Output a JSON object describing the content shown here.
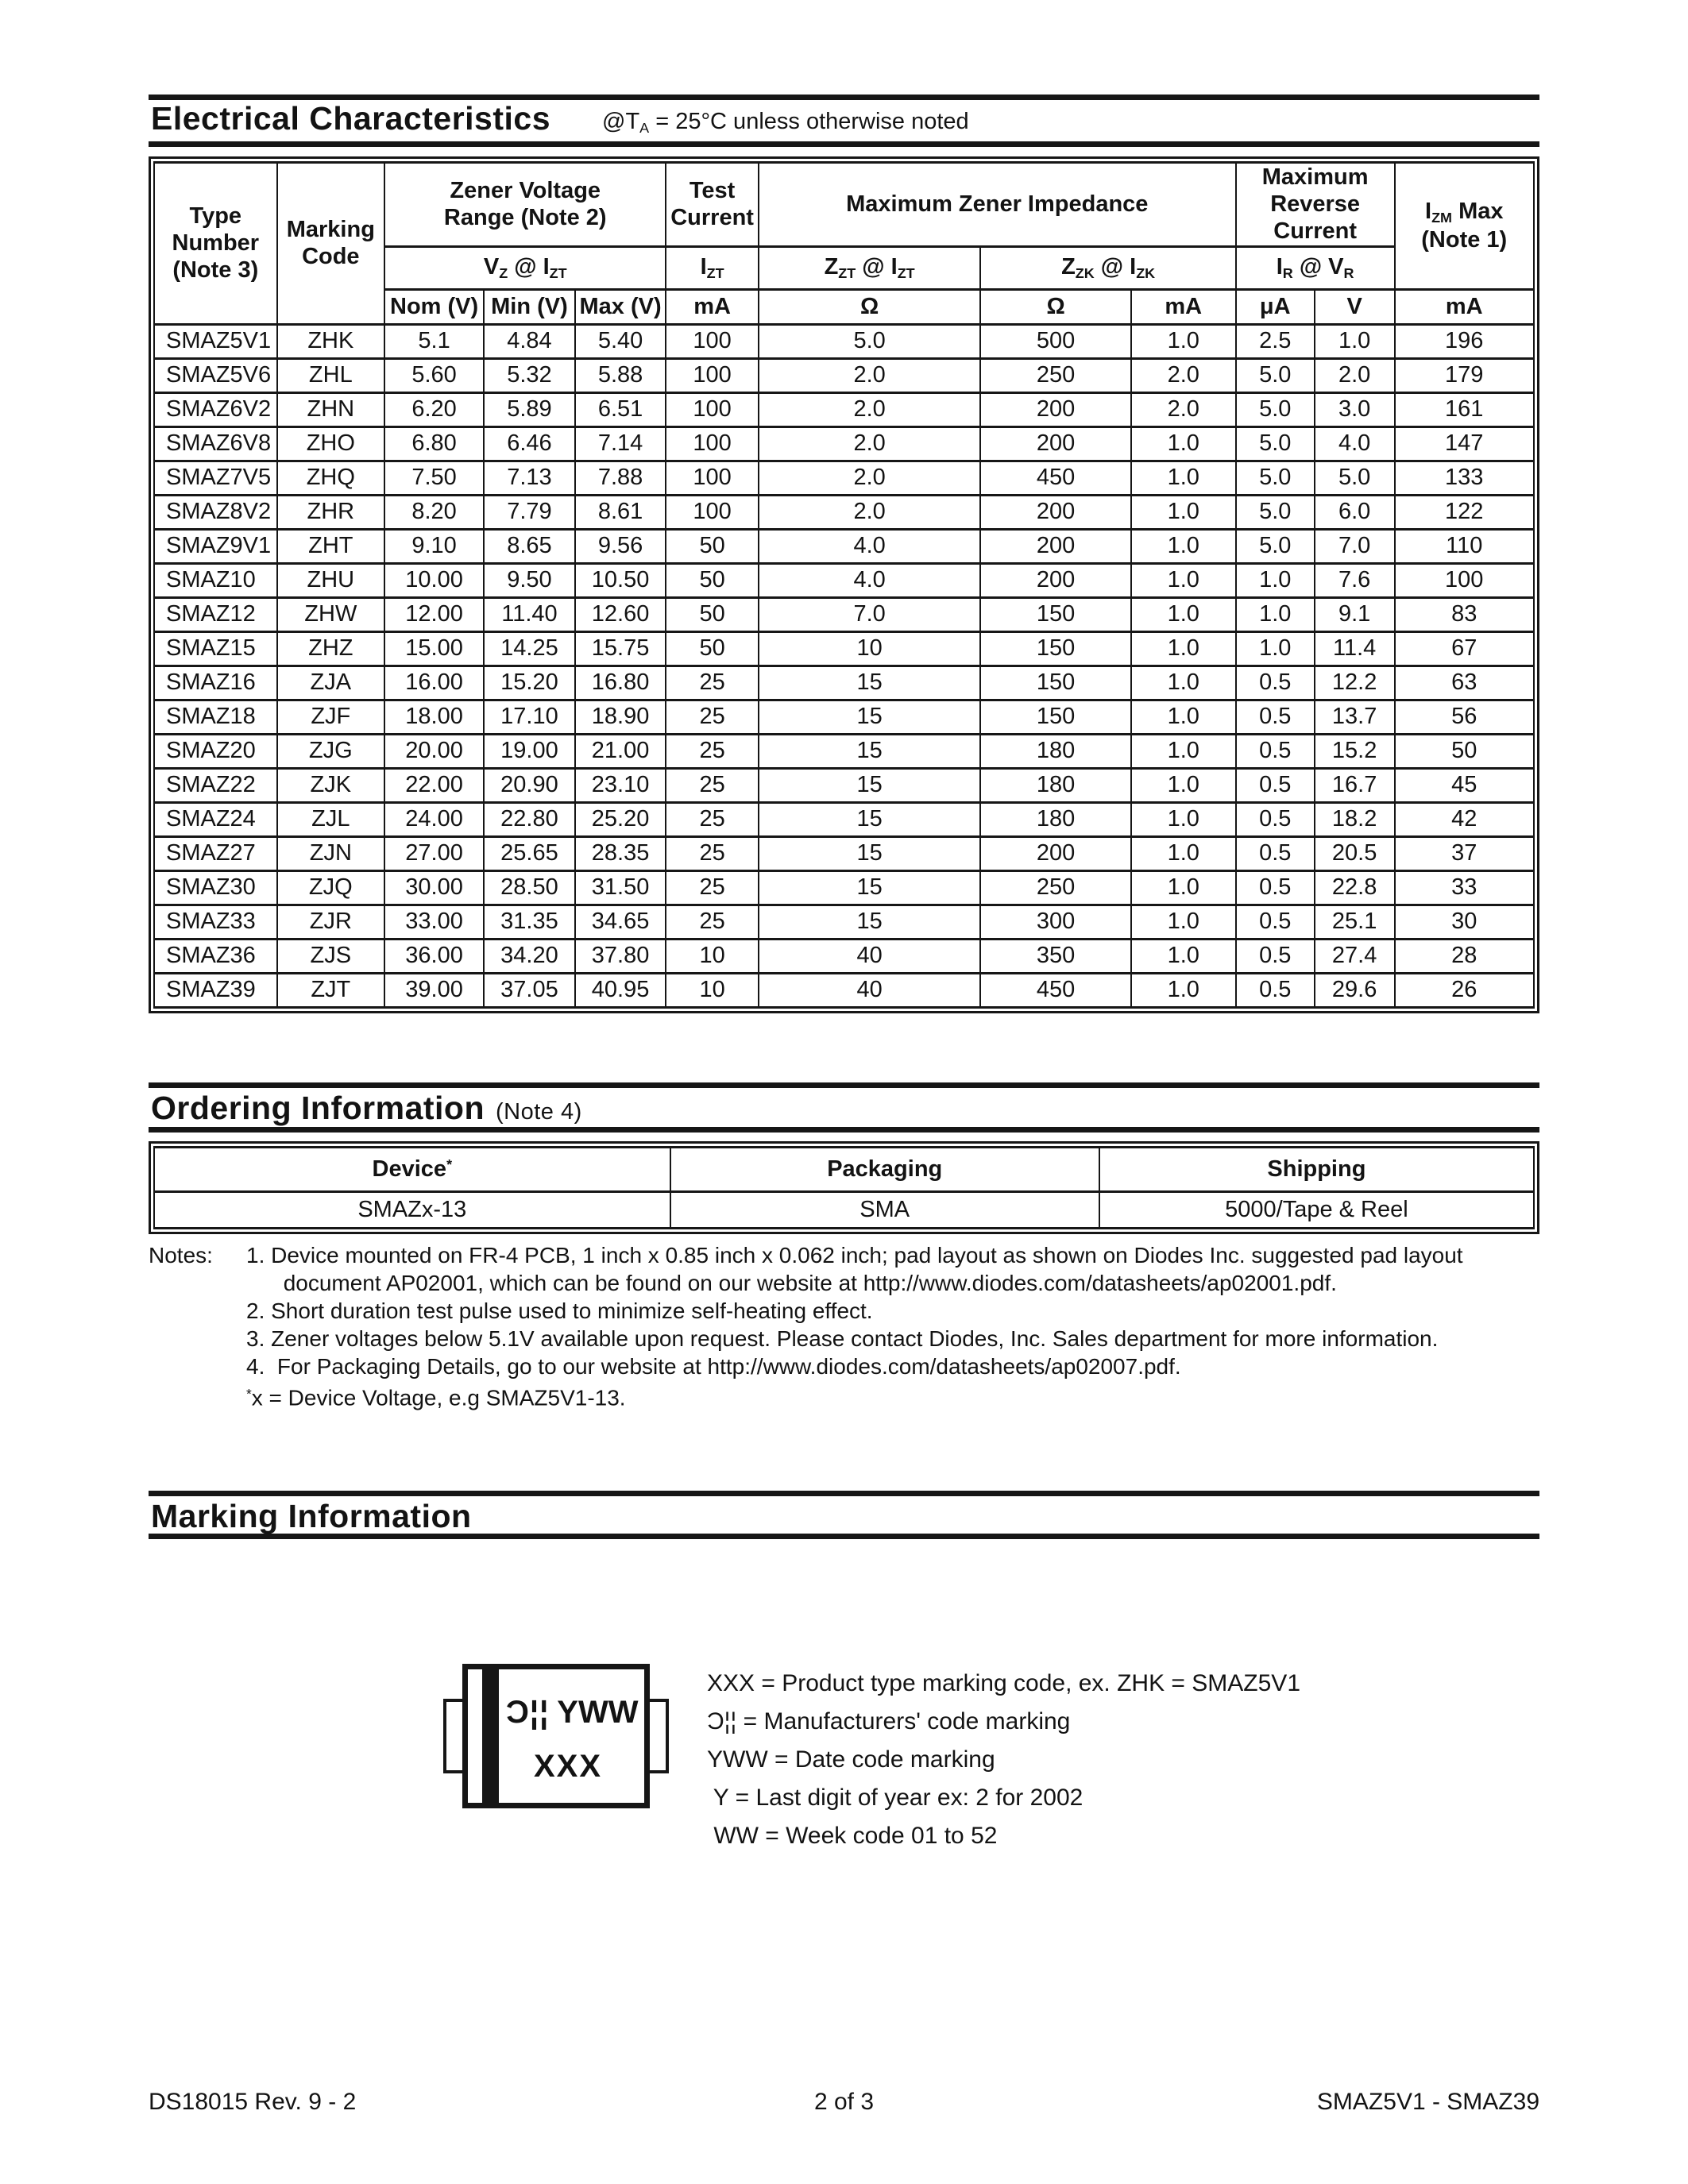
{
  "electrical": {
    "title": "Electrical Characteristics",
    "condition": "@T_{A} = 25°C unless otherwise noted",
    "table": {
      "header": {
        "type_number": "Type\nNumber\n(Note 3)",
        "marking_code": "Marking\nCode",
        "zener_range": "Zener Voltage\nRange (Note 2)",
        "test_current": "Test\nCurrent",
        "max_impedance": "Maximum Zener Impedance",
        "max_reverse": "Maximum\nReverse Current",
        "izm_max": "I_{ZM} Max\n(Note 1)",
        "vz": "V_{Z} @ I_{ZT}",
        "izt": "I_{ZT}",
        "zzt": "Z_{ZT} @ I_{ZT}",
        "zzk": "Z_{ZK} @ I_{ZK}",
        "ir_vr": "I_{R} @ V_{R}",
        "units": [
          "Nom (V)",
          "Min (V)",
          "Max (V)",
          "mA",
          "Ω",
          "Ω",
          "mA",
          "μA",
          "V",
          "mA"
        ]
      },
      "columns": [
        "type-number",
        "marking-code",
        "nom-v",
        "min-v",
        "max-v",
        "izt-ma",
        "zzt-ohm",
        "zzk-ohm",
        "izk-ma",
        "ir-ua",
        "vr-v",
        "izm-ma"
      ],
      "rows": [
        [
          "SMAZ5V1",
          "ZHK",
          "5.1",
          "4.84",
          "5.40",
          "100",
          "5.0",
          "500",
          "1.0",
          "2.5",
          "1.0",
          "196"
        ],
        [
          "SMAZ5V6",
          "ZHL",
          "5.60",
          "5.32",
          "5.88",
          "100",
          "2.0",
          "250",
          "2.0",
          "5.0",
          "2.0",
          "179"
        ],
        [
          "SMAZ6V2",
          "ZHN",
          "6.20",
          "5.89",
          "6.51",
          "100",
          "2.0",
          "200",
          "2.0",
          "5.0",
          "3.0",
          "161"
        ],
        [
          "SMAZ6V8",
          "ZHO",
          "6.80",
          "6.46",
          "7.14",
          "100",
          "2.0",
          "200",
          "1.0",
          "5.0",
          "4.0",
          "147"
        ],
        [
          "SMAZ7V5",
          "ZHQ",
          "7.50",
          "7.13",
          "7.88",
          "100",
          "2.0",
          "450",
          "1.0",
          "5.0",
          "5.0",
          "133"
        ],
        [
          "SMAZ8V2",
          "ZHR",
          "8.20",
          "7.79",
          "8.61",
          "100",
          "2.0",
          "200",
          "1.0",
          "5.0",
          "6.0",
          "122"
        ],
        [
          "SMAZ9V1",
          "ZHT",
          "9.10",
          "8.65",
          "9.56",
          "50",
          "4.0",
          "200",
          "1.0",
          "5.0",
          "7.0",
          "110"
        ],
        [
          "SMAZ10",
          "ZHU",
          "10.00",
          "9.50",
          "10.50",
          "50",
          "4.0",
          "200",
          "1.0",
          "1.0",
          "7.6",
          "100"
        ],
        [
          "SMAZ12",
          "ZHW",
          "12.00",
          "11.40",
          "12.60",
          "50",
          "7.0",
          "150",
          "1.0",
          "1.0",
          "9.1",
          "83"
        ],
        [
          "SMAZ15",
          "ZHZ",
          "15.00",
          "14.25",
          "15.75",
          "50",
          "10",
          "150",
          "1.0",
          "1.0",
          "11.4",
          "67"
        ],
        [
          "SMAZ16",
          "ZJA",
          "16.00",
          "15.20",
          "16.80",
          "25",
          "15",
          "150",
          "1.0",
          "0.5",
          "12.2",
          "63"
        ],
        [
          "SMAZ18",
          "ZJF",
          "18.00",
          "17.10",
          "18.90",
          "25",
          "15",
          "150",
          "1.0",
          "0.5",
          "13.7",
          "56"
        ],
        [
          "SMAZ20",
          "ZJG",
          "20.00",
          "19.00",
          "21.00",
          "25",
          "15",
          "180",
          "1.0",
          "0.5",
          "15.2",
          "50"
        ],
        [
          "SMAZ22",
          "ZJK",
          "22.00",
          "20.90",
          "23.10",
          "25",
          "15",
          "180",
          "1.0",
          "0.5",
          "16.7",
          "45"
        ],
        [
          "SMAZ24",
          "ZJL",
          "24.00",
          "22.80",
          "25.20",
          "25",
          "15",
          "180",
          "1.0",
          "0.5",
          "18.2",
          "42"
        ],
        [
          "SMAZ27",
          "ZJN",
          "27.00",
          "25.65",
          "28.35",
          "25",
          "15",
          "200",
          "1.0",
          "0.5",
          "20.5",
          "37"
        ],
        [
          "SMAZ30",
          "ZJQ",
          "30.00",
          "28.50",
          "31.50",
          "25",
          "15",
          "250",
          "1.0",
          "0.5",
          "22.8",
          "33"
        ],
        [
          "SMAZ33",
          "ZJR",
          "33.00",
          "31.35",
          "34.65",
          "25",
          "15",
          "300",
          "1.0",
          "0.5",
          "25.1",
          "30"
        ],
        [
          "SMAZ36",
          "ZJS",
          "36.00",
          "34.20",
          "37.80",
          "10",
          "40",
          "350",
          "1.0",
          "0.5",
          "27.4",
          "28"
        ],
        [
          "SMAZ39",
          "ZJT",
          "39.00",
          "37.05",
          "40.95",
          "10",
          "40",
          "450",
          "1.0",
          "0.5",
          "29.6",
          "26"
        ]
      ]
    }
  },
  "ordering": {
    "title": "Ordering Information",
    "note_ref": "(Note 4)",
    "table": {
      "headers": [
        "Device^{*}",
        "Packaging",
        "Shipping"
      ],
      "rows": [
        [
          "SMAZx-13",
          "SMA",
          "5000/Tape & Reel"
        ]
      ]
    }
  },
  "notes": {
    "label": "Notes:",
    "lines": [
      "1. Device mounted on FR-4 PCB, 1 inch x 0.85 inch x 0.062 inch; pad layout as shown on Diodes Inc. suggested pad layout",
      "      document AP02001, which can be found on our website at http://www.diodes.com/datasheets/ap02001.pdf.",
      "2. Short duration test pulse used to minimize self-heating effect.",
      "3. Zener voltages below 5.1V available upon request. Please contact Diodes, Inc. Sales department for more information.",
      "4.  For Packaging Details, go to our website at http://www.diodes.com/datasheets/ap02007.pdf.",
      "^{*}x = Device Voltage, e.g SMAZ5V1-13."
    ]
  },
  "marking": {
    "title": "Marking Information",
    "package": {
      "logo": "Ɔ¦¦",
      "top_code": "YWW",
      "bottom_code": "XXX"
    },
    "legend": [
      "XXX = Product type marking code, ex. ZHK = SMAZ5V1",
      " = Manufacturers' code marking",
      "YWW = Date code marking",
      " Y = Last digit of year ex: 2 for 2002",
      " WW = Week code 01 to 52"
    ]
  },
  "footer": {
    "left": "DS18015 Rev. 9 - 2",
    "center": "2 of 3",
    "right": "SMAZ5V1 - SMAZ39"
  }
}
